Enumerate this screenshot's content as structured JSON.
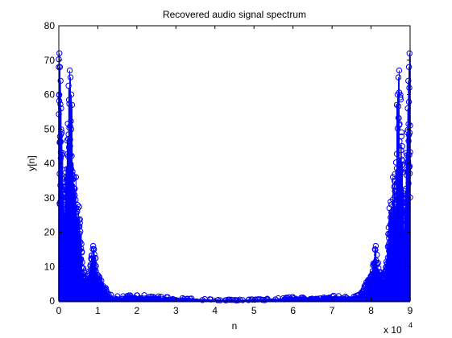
{
  "chart_data": {
    "type": "stem",
    "title": "Recovered audio signal spectrum",
    "xlabel": "n",
    "ylabel": "y[n]",
    "x_exponent_label": "x 10",
    "x_exponent_power": "4",
    "xlim": [
      0,
      90000
    ],
    "ylim": [
      0,
      80
    ],
    "xticks": [
      0,
      10000,
      20000,
      30000,
      40000,
      50000,
      60000,
      70000,
      80000,
      90000
    ],
    "xtick_labels": [
      "0",
      "1",
      "2",
      "3",
      "4",
      "5",
      "6",
      "7",
      "8",
      "9"
    ],
    "yticks": [
      0,
      10,
      20,
      30,
      40,
      50,
      60,
      70,
      80
    ],
    "ytick_labels": [
      "0",
      "10",
      "20",
      "30",
      "40",
      "50",
      "60",
      "70",
      "80"
    ],
    "marker": "circle",
    "color": "#0000ff",
    "grid": false,
    "series": [
      {
        "envelope_x": [
          0,
          500,
          1000,
          1500,
          2000,
          2500,
          3000,
          3500,
          4000,
          4500,
          5000,
          5500,
          6000,
          7000,
          8000,
          8500,
          9000,
          9500,
          10000,
          11000,
          12000,
          13000,
          15000,
          20000,
          25000,
          30000,
          35000,
          40000,
          45000,
          50000,
          55000,
          60000,
          65000,
          70000,
          75000,
          77000,
          78000,
          79000,
          80000,
          80500,
          81000,
          81500,
          82000,
          83000,
          84000,
          84500,
          85000,
          85500,
          86000,
          86500,
          87000,
          87500,
          88000,
          88500,
          89000,
          89500,
          90000
        ],
        "envelope_y": [
          72,
          56,
          35,
          30,
          45,
          66,
          58,
          42,
          36,
          28,
          30,
          25,
          12,
          6,
          10,
          15,
          16,
          12,
          8,
          6,
          4,
          2,
          1.5,
          1.8,
          1.5,
          1.2,
          0.8,
          0.5,
          0.4,
          0.5,
          0.8,
          1.2,
          1.5,
          1.8,
          1.5,
          2,
          4,
          6,
          8,
          12,
          16,
          15,
          10,
          6,
          12,
          25,
          30,
          28,
          36,
          42,
          58,
          66,
          45,
          30,
          35,
          56,
          72
        ],
        "outlier_points": [
          {
            "x": 150,
            "y": 72
          },
          {
            "x": 300,
            "y": 68
          },
          {
            "x": 450,
            "y": 64
          },
          {
            "x": 600,
            "y": 56
          },
          {
            "x": 800,
            "y": 49
          },
          {
            "x": 1000,
            "y": 43
          },
          {
            "x": 2800,
            "y": 67
          },
          {
            "x": 3000,
            "y": 65
          },
          {
            "x": 3200,
            "y": 60
          },
          {
            "x": 3400,
            "y": 57
          },
          {
            "x": 4400,
            "y": 36
          },
          {
            "x": 8800,
            "y": 16
          },
          {
            "x": 9000,
            "y": 15
          },
          {
            "x": 89850,
            "y": 72
          },
          {
            "x": 89700,
            "y": 68
          },
          {
            "x": 89550,
            "y": 64
          },
          {
            "x": 89400,
            "y": 56
          },
          {
            "x": 89200,
            "y": 49
          },
          {
            "x": 89000,
            "y": 43
          },
          {
            "x": 87200,
            "y": 67
          },
          {
            "x": 87000,
            "y": 65
          },
          {
            "x": 86800,
            "y": 60
          },
          {
            "x": 86600,
            "y": 57
          },
          {
            "x": 85600,
            "y": 36
          },
          {
            "x": 81200,
            "y": 16
          },
          {
            "x": 81000,
            "y": 15
          }
        ]
      }
    ]
  }
}
